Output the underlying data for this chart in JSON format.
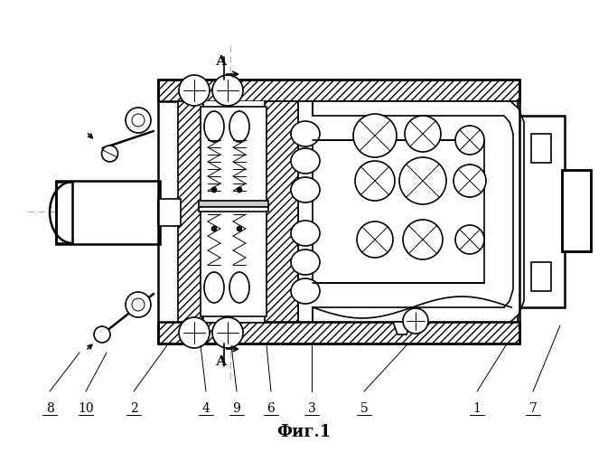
{
  "title": "Фиг.1",
  "background_color": "#ffffff",
  "line_color": "#000000",
  "centerline_color": "#aaaaaa",
  "label_data": [
    [
      8,
      55,
      445,
      88,
      390
    ],
    [
      10,
      95,
      445,
      118,
      390
    ],
    [
      2,
      148,
      445,
      185,
      382
    ],
    [
      4,
      228,
      445,
      222,
      382
    ],
    [
      9,
      262,
      445,
      256,
      382
    ],
    [
      6,
      300,
      445,
      295,
      382
    ],
    [
      3,
      345,
      445,
      345,
      382
    ],
    [
      5,
      403,
      445,
      450,
      382
    ],
    [
      1,
      528,
      445,
      560,
      382
    ],
    [
      7,
      590,
      445,
      620,
      360
    ]
  ]
}
